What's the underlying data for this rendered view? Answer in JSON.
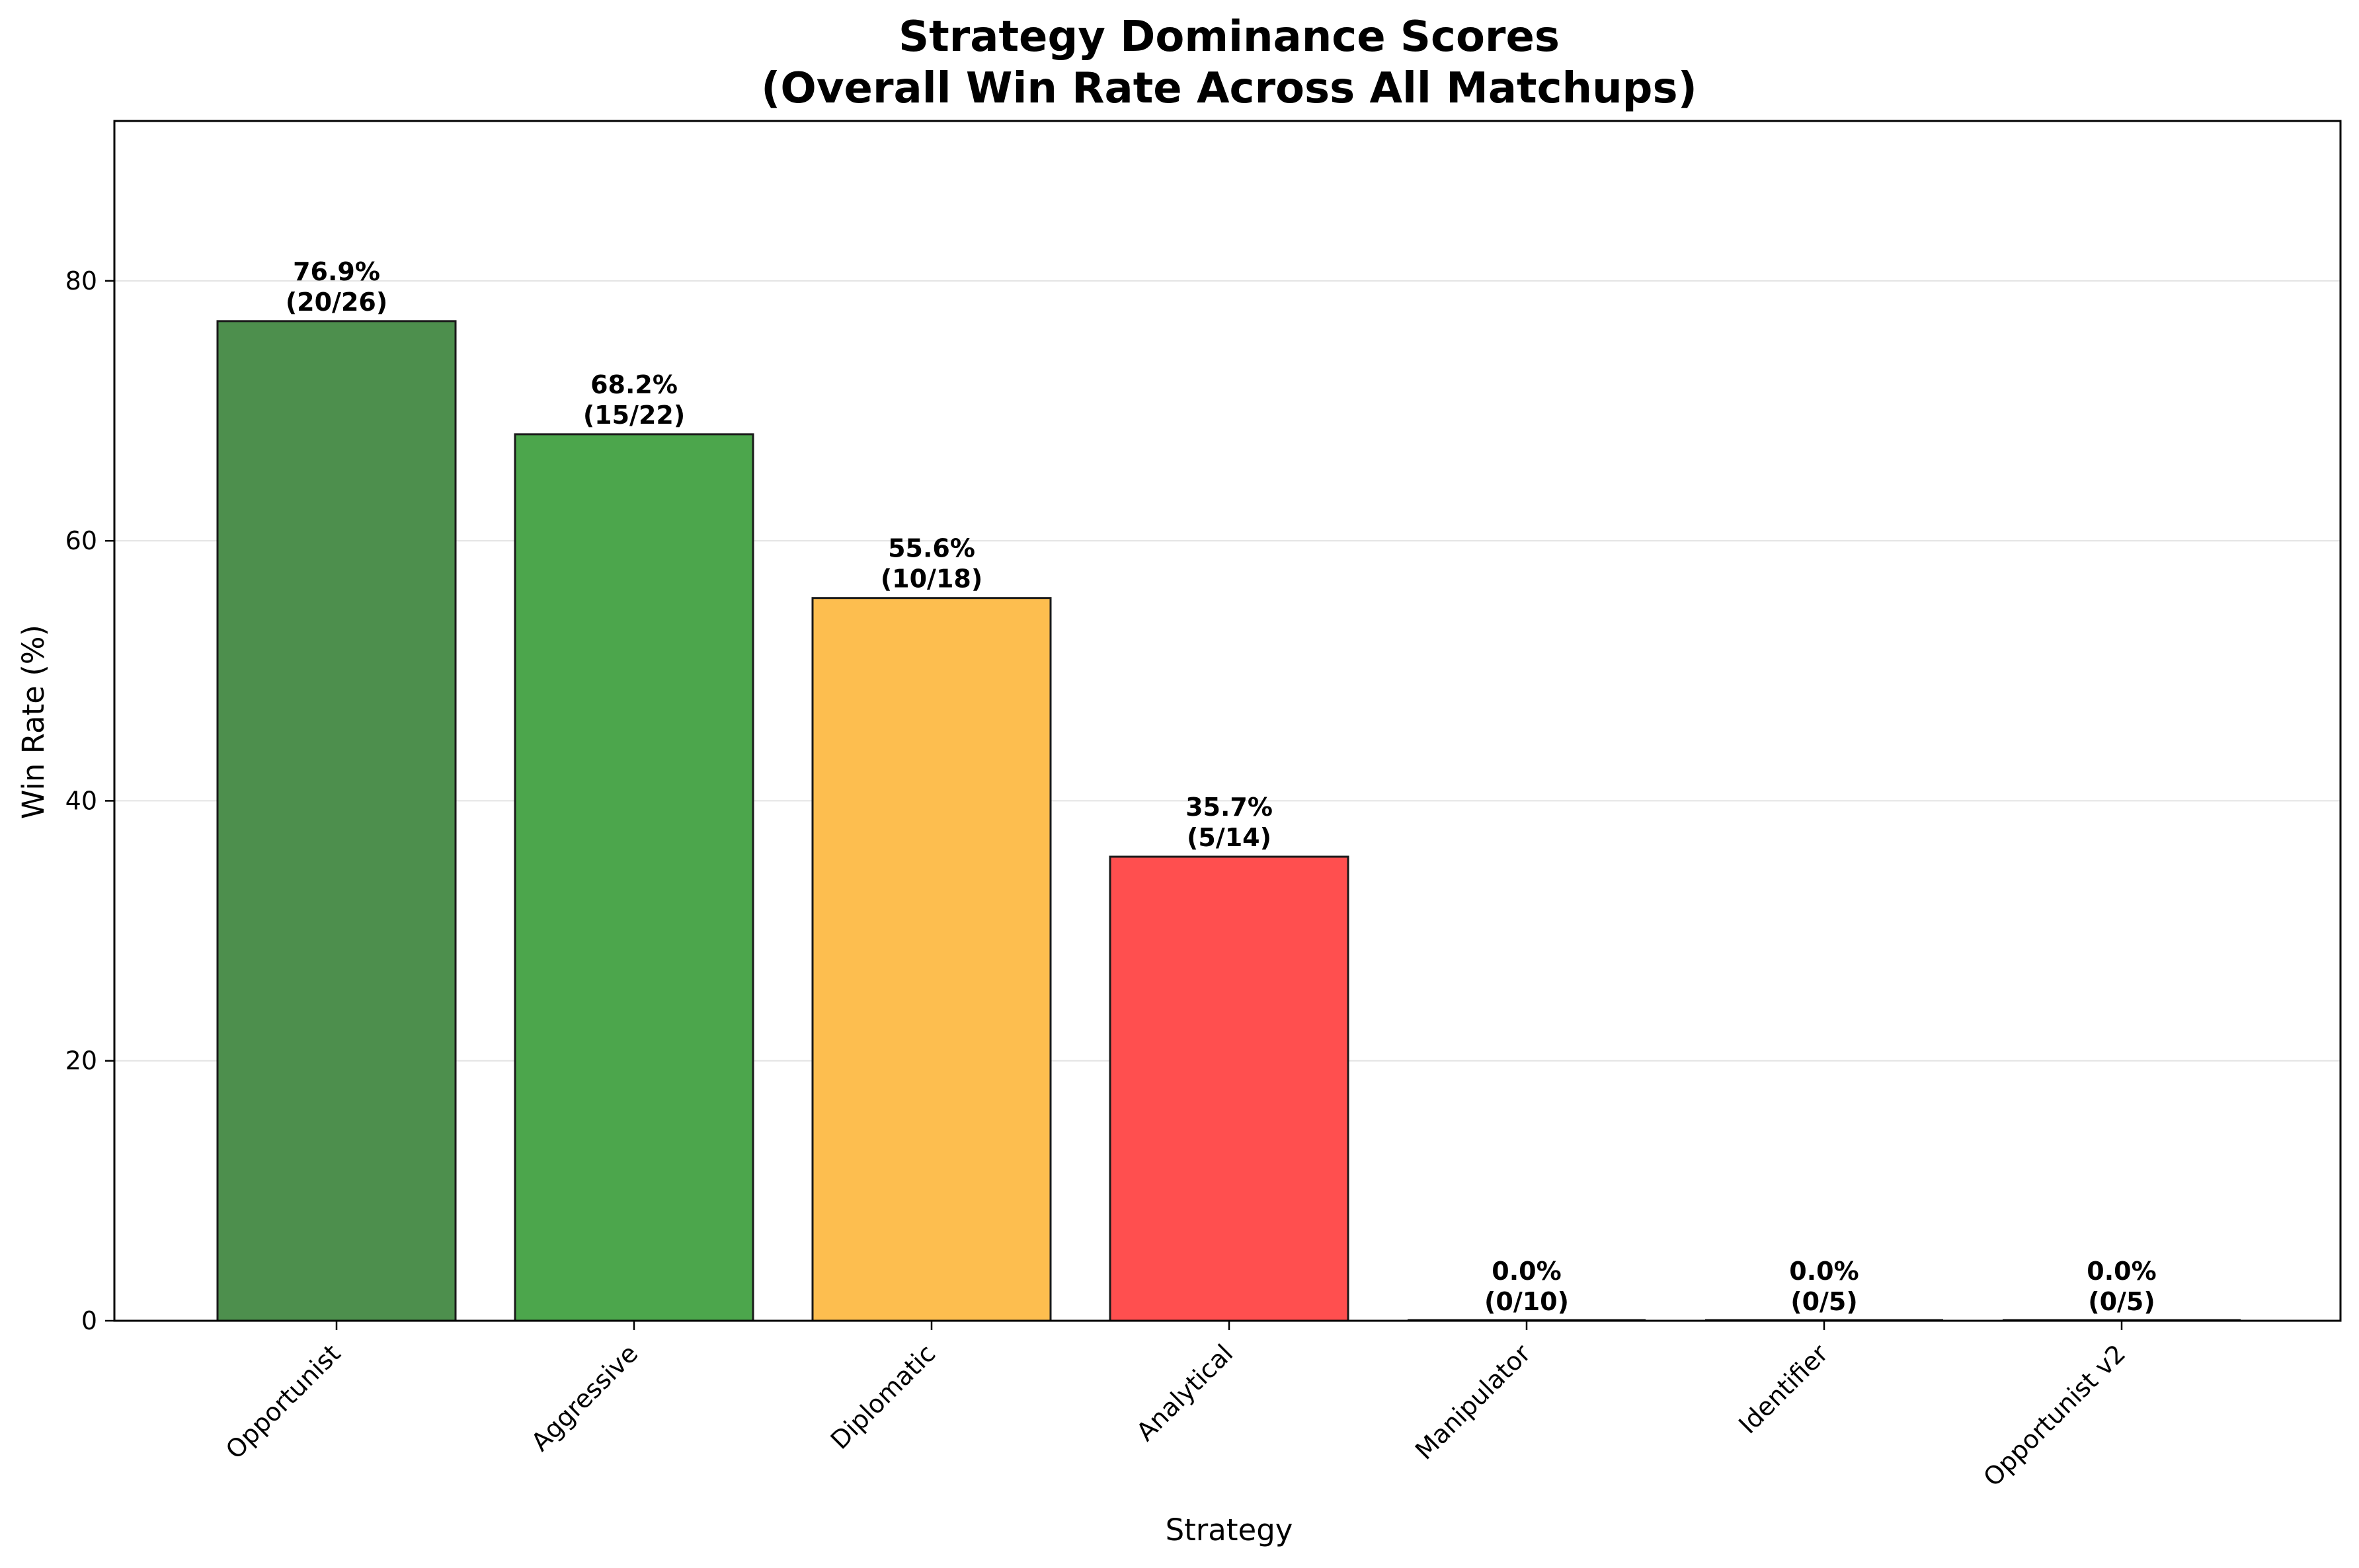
{
  "chart_data": {
    "type": "bar",
    "title": [
      "Strategy Dominance Scores",
      "(Overall Win Rate Across All Matchups)"
    ],
    "xlabel": "Strategy",
    "ylabel": "Win Rate (%)",
    "ylim": [
      0,
      92.3
    ],
    "yticks": [
      0,
      20,
      40,
      60,
      80
    ],
    "grid": "y-axis, light gray",
    "categories": [
      "Opportunist",
      "Aggressive",
      "Diplomatic",
      "Analytical",
      "Manipulator",
      "Identifier",
      "Opportunist v2"
    ],
    "values": [
      76.9,
      68.2,
      55.6,
      35.7,
      0.0,
      0.0,
      0.0
    ],
    "labels": [
      [
        "76.9%",
        "(20/26)"
      ],
      [
        "68.2%",
        "(15/22)"
      ],
      [
        "55.6%",
        "(10/18)"
      ],
      [
        "35.7%",
        "(5/14)"
      ],
      [
        "0.0%",
        "(0/10)"
      ],
      [
        "0.0%",
        "(0/5)"
      ],
      [
        "0.0%",
        "(0/5)"
      ]
    ],
    "colors": [
      "#4d8f4d",
      "#4ca64c",
      "#fdbe4f",
      "#ff4f4f",
      "#ff4f4f",
      "#ff4f4f",
      "#ff4f4f"
    ],
    "edge_color": "#1a1a1a"
  }
}
